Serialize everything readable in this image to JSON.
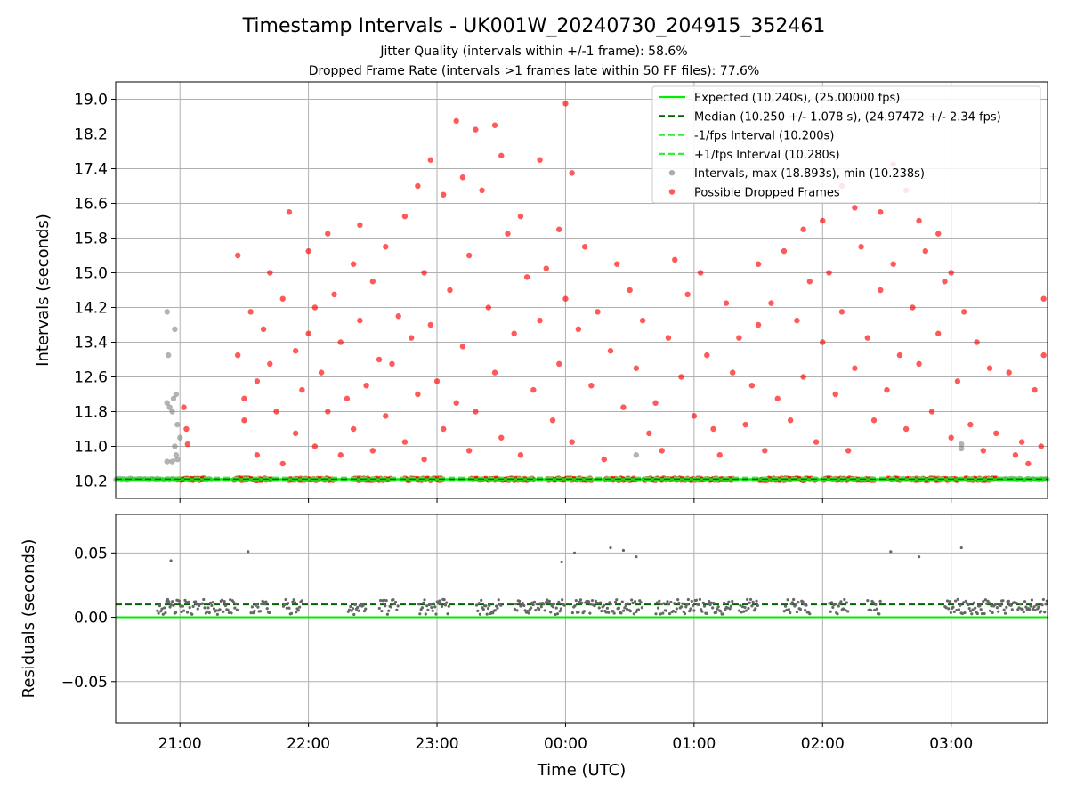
{
  "title": "Timestamp Intervals - UK001W_20240730_204915_352461",
  "subtitle_line1": "Jitter Quality (intervals within +/-1 frame): 58.6%",
  "subtitle_line2": "Dropped Frame Rate (intervals >1 frames late within 50 FF files): 77.6%",
  "colors": {
    "expected": "#00ee00",
    "median": "#006400",
    "fps_band": "#33ee33",
    "intervals": "#808080",
    "dropped": "#ff0000",
    "residual": "#666666",
    "grid": "#b0b0b0"
  },
  "chart_data": [
    {
      "type": "scatter",
      "panel": "top",
      "ylabel": "Intervals (seconds)",
      "xlabel": "",
      "x_unit": "hours after 21:00 UTC (negative before 21:00)",
      "xlim": [
        -0.5,
        6.75
      ],
      "ylim": [
        9.8,
        19.4
      ],
      "yticks": [
        10.2,
        11.0,
        11.8,
        12.6,
        13.4,
        14.2,
        15.0,
        15.8,
        16.6,
        17.4,
        18.2,
        19.0
      ],
      "ytick_labels": [
        "10.2",
        "11.0",
        "11.8",
        "12.6",
        "13.4",
        "14.2",
        "15.0",
        "15.8",
        "16.6",
        "17.4",
        "18.2",
        "19.0"
      ],
      "grid": true,
      "legend_position": "top-right",
      "legend": [
        {
          "label": "Expected (10.240s), (25.00000 fps)",
          "kind": "line-solid",
          "color": "#00ee00"
        },
        {
          "label": "Median (10.250 +/- 1.078 s), (24.97472 +/- 2.34 fps)",
          "kind": "line-dashed",
          "color": "#006400"
        },
        {
          "label": "-1/fps Interval (10.200s)",
          "kind": "line-dashed",
          "color": "#33ee33"
        },
        {
          "label": "+1/fps Interval (10.280s)",
          "kind": "line-dashed",
          "color": "#33ee33"
        },
        {
          "label": "Intervals, max (18.893s), min (10.238s)",
          "kind": "dot",
          "color": "#808080"
        },
        {
          "label": "Possible Dropped Frames",
          "kind": "dot",
          "color": "#ff0000"
        }
      ],
      "hlines": [
        {
          "y": 10.24,
          "style": "solid",
          "color": "#00ee00"
        },
        {
          "y": 10.25,
          "style": "dashed",
          "color": "#006400"
        },
        {
          "y": 10.2,
          "style": "dashed",
          "color": "#33ee33"
        },
        {
          "y": 10.28,
          "style": "dashed",
          "color": "#33ee33"
        }
      ],
      "series": [
        {
          "name": "Intervals, max (18.893s), min (10.238s)",
          "color": "#808080",
          "points": [
            [
              -0.1,
              14.1
            ],
            [
              -0.09,
              13.1
            ],
            [
              -0.04,
              13.7
            ],
            [
              -0.1,
              12.0
            ],
            [
              -0.08,
              11.9
            ],
            [
              -0.05,
              12.1
            ],
            [
              -0.03,
              12.2
            ],
            [
              -0.06,
              11.8
            ],
            [
              -0.02,
              11.5
            ],
            [
              -0.04,
              11.0
            ],
            [
              -0.03,
              10.8
            ],
            [
              -0.1,
              10.65
            ],
            [
              -0.06,
              10.65
            ],
            [
              -0.02,
              10.7
            ],
            [
              0.0,
              11.2
            ],
            [
              3.55,
              10.8
            ],
            [
              6.08,
              11.05
            ],
            [
              6.08,
              10.95
            ]
          ]
        },
        {
          "name": "Possible Dropped Frames",
          "color": "#ff0000",
          "points": [
            [
              0.03,
              11.9
            ],
            [
              0.05,
              11.4
            ],
            [
              0.06,
              11.05
            ],
            [
              0.45,
              15.4
            ],
            [
              0.45,
              13.1
            ],
            [
              0.5,
              12.1
            ],
            [
              0.5,
              11.6
            ],
            [
              0.55,
              14.1
            ],
            [
              0.6,
              12.5
            ],
            [
              0.6,
              10.8
            ],
            [
              0.65,
              13.7
            ],
            [
              0.7,
              15.0
            ],
            [
              0.7,
              12.9
            ],
            [
              0.75,
              11.8
            ],
            [
              0.8,
              14.4
            ],
            [
              0.8,
              10.6
            ],
            [
              0.85,
              16.4
            ],
            [
              0.9,
              13.2
            ],
            [
              0.9,
              11.3
            ],
            [
              0.95,
              12.3
            ],
            [
              1.0,
              15.5
            ],
            [
              1.0,
              13.6
            ],
            [
              1.05,
              14.2
            ],
            [
              1.05,
              11.0
            ],
            [
              1.1,
              12.7
            ],
            [
              1.15,
              15.9
            ],
            [
              1.15,
              11.8
            ],
            [
              1.2,
              14.5
            ],
            [
              1.25,
              13.4
            ],
            [
              1.25,
              10.8
            ],
            [
              1.3,
              12.1
            ],
            [
              1.35,
              15.2
            ],
            [
              1.35,
              11.4
            ],
            [
              1.4,
              16.1
            ],
            [
              1.4,
              13.9
            ],
            [
              1.45,
              12.4
            ],
            [
              1.5,
              14.8
            ],
            [
              1.5,
              10.9
            ],
            [
              1.55,
              13.0
            ],
            [
              1.6,
              15.6
            ],
            [
              1.6,
              11.7
            ],
            [
              1.65,
              12.9
            ],
            [
              1.7,
              14.0
            ],
            [
              1.75,
              16.3
            ],
            [
              1.75,
              11.1
            ],
            [
              1.8,
              13.5
            ],
            [
              1.85,
              17.0
            ],
            [
              1.85,
              12.2
            ],
            [
              1.9,
              15.0
            ],
            [
              1.9,
              10.7
            ],
            [
              1.95,
              17.6
            ],
            [
              1.95,
              13.8
            ],
            [
              2.0,
              12.5
            ],
            [
              2.05,
              16.8
            ],
            [
              2.05,
              11.4
            ],
            [
              2.1,
              14.6
            ],
            [
              2.15,
              18.5
            ],
            [
              2.15,
              12.0
            ],
            [
              2.2,
              17.2
            ],
            [
              2.2,
              13.3
            ],
            [
              2.25,
              15.4
            ],
            [
              2.25,
              10.9
            ],
            [
              2.3,
              18.3
            ],
            [
              2.3,
              11.8
            ],
            [
              2.35,
              16.9
            ],
            [
              2.4,
              14.2
            ],
            [
              2.45,
              18.4
            ],
            [
              2.45,
              12.7
            ],
            [
              2.5,
              17.7
            ],
            [
              2.5,
              11.2
            ],
            [
              2.55,
              15.9
            ],
            [
              2.6,
              13.6
            ],
            [
              2.65,
              16.3
            ],
            [
              2.65,
              10.8
            ],
            [
              2.7,
              14.9
            ],
            [
              2.75,
              12.3
            ],
            [
              2.8,
              17.6
            ],
            [
              2.8,
              13.9
            ],
            [
              2.85,
              15.1
            ],
            [
              2.9,
              11.6
            ],
            [
              2.95,
              16.0
            ],
            [
              2.95,
              12.9
            ],
            [
              3.0,
              18.9
            ],
            [
              3.0,
              14.4
            ],
            [
              3.05,
              17.3
            ],
            [
              3.05,
              11.1
            ],
            [
              3.1,
              13.7
            ],
            [
              3.15,
              15.6
            ],
            [
              3.2,
              12.4
            ],
            [
              3.25,
              14.1
            ],
            [
              3.3,
              10.7
            ],
            [
              3.35,
              13.2
            ],
            [
              3.4,
              15.2
            ],
            [
              3.45,
              11.9
            ],
            [
              3.5,
              14.6
            ],
            [
              3.55,
              12.8
            ],
            [
              3.6,
              13.9
            ],
            [
              3.65,
              11.3
            ],
            [
              3.7,
              12.0
            ],
            [
              3.75,
              10.9
            ],
            [
              3.8,
              13.5
            ],
            [
              3.85,
              15.3
            ],
            [
              3.9,
              12.6
            ],
            [
              3.95,
              14.5
            ],
            [
              4.0,
              11.7
            ],
            [
              4.05,
              15.0
            ],
            [
              4.1,
              13.1
            ],
            [
              4.15,
              11.4
            ],
            [
              4.2,
              10.8
            ],
            [
              4.25,
              14.3
            ],
            [
              4.3,
              12.7
            ],
            [
              4.35,
              13.5
            ],
            [
              4.4,
              11.5
            ],
            [
              4.45,
              12.4
            ],
            [
              4.5,
              15.2
            ],
            [
              4.5,
              13.8
            ],
            [
              4.55,
              10.9
            ],
            [
              4.6,
              14.3
            ],
            [
              4.65,
              12.1
            ],
            [
              4.7,
              15.5
            ],
            [
              4.75,
              11.6
            ],
            [
              4.8,
              13.9
            ],
            [
              4.85,
              16.0
            ],
            [
              4.85,
              12.6
            ],
            [
              4.9,
              14.8
            ],
            [
              4.95,
              11.1
            ],
            [
              5.0,
              16.2
            ],
            [
              5.0,
              13.4
            ],
            [
              5.05,
              15.0
            ],
            [
              5.1,
              12.2
            ],
            [
              5.15,
              17.0
            ],
            [
              5.15,
              14.1
            ],
            [
              5.2,
              10.9
            ],
            [
              5.25,
              16.5
            ],
            [
              5.25,
              12.8
            ],
            [
              5.3,
              15.6
            ],
            [
              5.35,
              13.5
            ],
            [
              5.4,
              11.6
            ],
            [
              5.45,
              16.4
            ],
            [
              5.45,
              14.6
            ],
            [
              5.5,
              12.3
            ],
            [
              5.55,
              17.5
            ],
            [
              5.55,
              15.2
            ],
            [
              5.6,
              13.1
            ],
            [
              5.65,
              16.9
            ],
            [
              5.65,
              11.4
            ],
            [
              5.7,
              14.2
            ],
            [
              5.75,
              16.2
            ],
            [
              5.75,
              12.9
            ],
            [
              5.8,
              15.5
            ],
            [
              5.85,
              11.8
            ],
            [
              5.9,
              15.9
            ],
            [
              5.9,
              13.6
            ],
            [
              5.95,
              14.8
            ],
            [
              6.0,
              11.2
            ],
            [
              6.0,
              15.0
            ],
            [
              6.05,
              12.5
            ],
            [
              6.1,
              14.1
            ],
            [
              6.15,
              11.5
            ],
            [
              6.2,
              13.4
            ],
            [
              6.25,
              10.9
            ],
            [
              6.3,
              12.8
            ],
            [
              6.35,
              11.3
            ],
            [
              6.45,
              12.7
            ],
            [
              6.5,
              10.8
            ],
            [
              6.55,
              11.1
            ],
            [
              6.6,
              10.6
            ],
            [
              6.65,
              12.3
            ],
            [
              6.7,
              11.0
            ],
            [
              6.72,
              14.4
            ],
            [
              6.72,
              13.1
            ]
          ]
        }
      ]
    },
    {
      "type": "scatter",
      "panel": "bottom",
      "xlabel": "Time (UTC)",
      "ylabel": "Residuals (seconds)",
      "xlim": [
        -0.5,
        6.75
      ],
      "ylim": [
        -0.082,
        0.08
      ],
      "xticks": [
        0,
        1,
        2,
        3,
        4,
        5,
        6
      ],
      "xtick_labels": [
        "21:00",
        "22:00",
        "23:00",
        "00:00",
        "01:00",
        "02:00",
        "03:00"
      ],
      "yticks": [
        -0.05,
        0.0,
        0.05
      ],
      "ytick_labels": [
        "−0.05",
        "0.00",
        "0.05"
      ],
      "grid": true,
      "hlines": [
        {
          "y": 0.0,
          "style": "solid",
          "color": "#00ee00"
        },
        {
          "y": 0.01,
          "style": "dashed",
          "color": "#006400"
        }
      ],
      "outliers": [
        [
          -0.07,
          0.044
        ],
        [
          0.53,
          0.051
        ],
        [
          2.97,
          0.043
        ],
        [
          3.07,
          0.05
        ],
        [
          3.35,
          0.054
        ],
        [
          3.45,
          0.052
        ],
        [
          3.55,
          0.047
        ],
        [
          5.53,
          0.051
        ],
        [
          5.75,
          0.047
        ],
        [
          6.08,
          0.054
        ]
      ]
    }
  ]
}
